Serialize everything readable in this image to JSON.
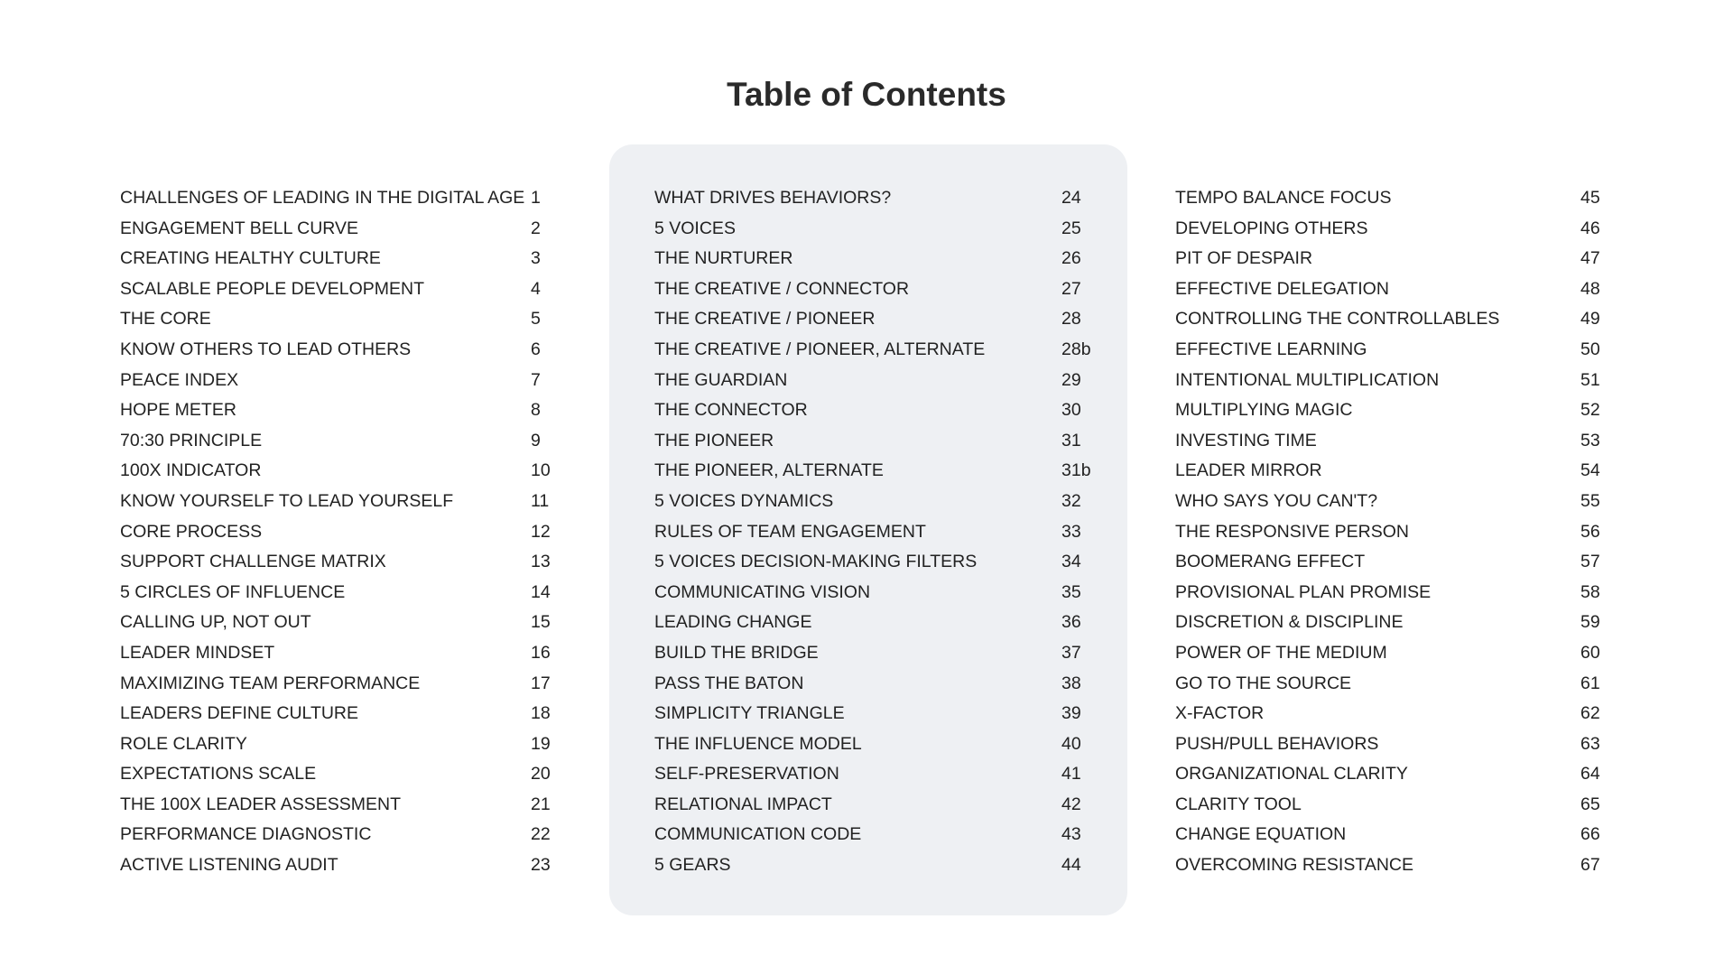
{
  "title": "Table of Contents",
  "columns": [
    [
      {
        "label": "CHALLENGES OF LEADING IN THE DIGITAL AGE",
        "page": "1"
      },
      {
        "label": "ENGAGEMENT BELL CURVE",
        "page": "2"
      },
      {
        "label": "CREATING HEALTHY CULTURE",
        "page": "3"
      },
      {
        "label": "SCALABLE PEOPLE DEVELOPMENT",
        "page": "4"
      },
      {
        "label": "THE CORE",
        "page": "5"
      },
      {
        "label": "KNOW OTHERS TO LEAD OTHERS",
        "page": "6"
      },
      {
        "label": "PEACE INDEX",
        "page": "7"
      },
      {
        "label": "HOPE METER",
        "page": "8"
      },
      {
        "label": "70:30 PRINCIPLE",
        "page": "9"
      },
      {
        "label": "100X INDICATOR",
        "page": "10"
      },
      {
        "label": "KNOW YOURSELF TO LEAD YOURSELF",
        "page": "11"
      },
      {
        "label": "CORE PROCESS",
        "page": "12"
      },
      {
        "label": "SUPPORT CHALLENGE MATRIX",
        "page": "13"
      },
      {
        "label": "5 CIRCLES OF INFLUENCE",
        "page": "14"
      },
      {
        "label": "CALLING UP, NOT OUT",
        "page": "15"
      },
      {
        "label": "LEADER MINDSET",
        "page": "16"
      },
      {
        "label": "MAXIMIZING TEAM PERFORMANCE",
        "page": "17"
      },
      {
        "label": "LEADERS DEFINE CULTURE",
        "page": "18"
      },
      {
        "label": "ROLE CLARITY",
        "page": "19"
      },
      {
        "label": "EXPECTATIONS SCALE",
        "page": "20"
      },
      {
        "label": "THE 100X LEADER ASSESSMENT",
        "page": "21"
      },
      {
        "label": "PERFORMANCE DIAGNOSTIC",
        "page": "22"
      },
      {
        "label": "ACTIVE LISTENING AUDIT",
        "page": "23"
      }
    ],
    [
      {
        "label": "WHAT DRIVES BEHAVIORS?",
        "page": "24"
      },
      {
        "label": "5 VOICES",
        "page": "25"
      },
      {
        "label": "THE NURTURER",
        "page": "26"
      },
      {
        "label": "THE CREATIVE / CONNECTOR",
        "page": "27"
      },
      {
        "label": "THE CREATIVE / PIONEER",
        "page": "28"
      },
      {
        "label": "THE CREATIVE / PIONEER, ALTERNATE",
        "page": "28b"
      },
      {
        "label": "THE GUARDIAN",
        "page": "29"
      },
      {
        "label": "THE CONNECTOR",
        "page": "30"
      },
      {
        "label": "THE PIONEER",
        "page": "31"
      },
      {
        "label": "THE PIONEER, ALTERNATE",
        "page": "31b"
      },
      {
        "label": "5 VOICES DYNAMICS",
        "page": "32"
      },
      {
        "label": "RULES OF TEAM ENGAGEMENT",
        "page": "33"
      },
      {
        "label": "5 VOICES DECISION-MAKING FILTERS",
        "page": "34"
      },
      {
        "label": "COMMUNICATING VISION",
        "page": "35"
      },
      {
        "label": "LEADING CHANGE",
        "page": "36"
      },
      {
        "label": "BUILD THE BRIDGE",
        "page": "37"
      },
      {
        "label": "PASS THE BATON",
        "page": "38"
      },
      {
        "label": "SIMPLICITY TRIANGLE",
        "page": "39"
      },
      {
        "label": "THE INFLUENCE MODEL",
        "page": "40"
      },
      {
        "label": "SELF-PRESERVATION",
        "page": "41"
      },
      {
        "label": "RELATIONAL IMPACT",
        "page": "42"
      },
      {
        "label": "COMMUNICATION CODE",
        "page": "43"
      },
      {
        "label": "5 GEARS",
        "page": "44"
      }
    ],
    [
      {
        "label": "TEMPO BALANCE FOCUS",
        "page": "45"
      },
      {
        "label": "DEVELOPING OTHERS",
        "page": "46"
      },
      {
        "label": "PIT OF DESPAIR",
        "page": "47"
      },
      {
        "label": "EFFECTIVE DELEGATION",
        "page": "48"
      },
      {
        "label": "CONTROLLING THE CONTROLLABLES",
        "page": "49"
      },
      {
        "label": "EFFECTIVE LEARNING",
        "page": "50"
      },
      {
        "label": "INTENTIONAL MULTIPLICATION",
        "page": "51"
      },
      {
        "label": "MULTIPLYING MAGIC",
        "page": "52"
      },
      {
        "label": "INVESTING TIME",
        "page": "53"
      },
      {
        "label": "LEADER MIRROR",
        "page": "54"
      },
      {
        "label": "WHO SAYS YOU CAN'T?",
        "page": "55"
      },
      {
        "label": "THE RESPONSIVE PERSON",
        "page": "56"
      },
      {
        "label": "BOOMERANG EFFECT",
        "page": "57"
      },
      {
        "label": "PROVISIONAL PLAN PROMISE",
        "page": "58"
      },
      {
        "label": "DISCRETION & DISCIPLINE",
        "page": "59"
      },
      {
        "label": "POWER OF THE MEDIUM",
        "page": "60"
      },
      {
        "label": "GO TO THE SOURCE",
        "page": "61"
      },
      {
        "label": "X-FACTOR",
        "page": "62"
      },
      {
        "label": "PUSH/PULL BEHAVIORS",
        "page": "63"
      },
      {
        "label": "ORGANIZATIONAL CLARITY",
        "page": "64"
      },
      {
        "label": "CLARITY TOOL",
        "page": "65"
      },
      {
        "label": "CHANGE EQUATION",
        "page": "66"
      },
      {
        "label": "OVERCOMING RESISTANCE",
        "page": "67"
      }
    ]
  ],
  "colors": {
    "text": "#222222",
    "panel": "#eef0f3"
  }
}
